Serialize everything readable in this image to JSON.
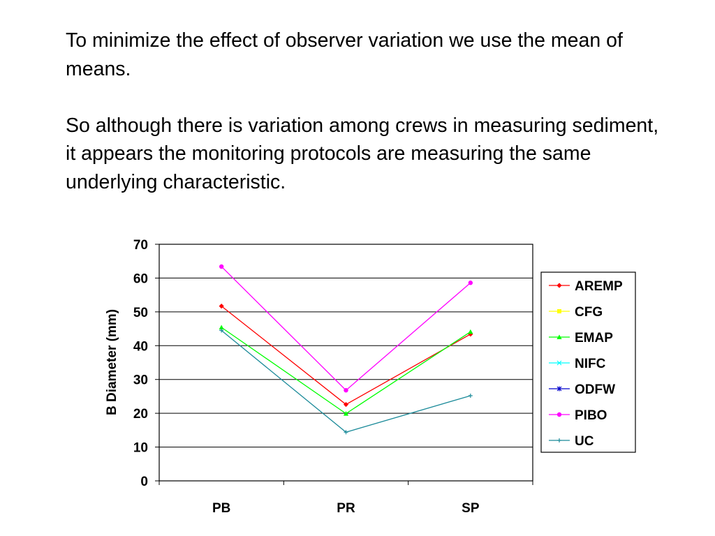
{
  "slide": {
    "paragraph_1": "To minimize the effect of observer variation we use the mean of means.",
    "paragraph_2": "So although there is variation among crews in measuring sediment, it appears the monitoring protocols are measuring the same underlying characteristic."
  },
  "chart_data": {
    "type": "line",
    "title": "",
    "xlabel": "",
    "ylabel": "B Diameter (mm)",
    "categories": [
      "PB",
      "PR",
      "SP"
    ],
    "ylim": [
      0,
      70
    ],
    "yticks": [
      0,
      10,
      20,
      30,
      40,
      50,
      60,
      70
    ],
    "grid": "horizontal major gridlines",
    "legend_position": "right",
    "series": [
      {
        "name": "AREMP",
        "values": [
          51.7,
          22.6,
          43.4
        ],
        "color": "#ff0000",
        "marker": "diamond"
      },
      {
        "name": "CFG",
        "values": [
          null,
          null,
          null
        ],
        "color": "#ffff00",
        "marker": "square"
      },
      {
        "name": "EMAP",
        "values": [
          45.4,
          19.9,
          44.1
        ],
        "color": "#00ff00",
        "marker": "triangle"
      },
      {
        "name": "NIFC",
        "values": [
          null,
          null,
          null
        ],
        "color": "#00ffff",
        "marker": "x"
      },
      {
        "name": "ODFW",
        "values": [
          null,
          null,
          null
        ],
        "color": "#0000cc",
        "marker": "star"
      },
      {
        "name": "PIBO",
        "values": [
          63.4,
          26.8,
          58.6
        ],
        "color": "#ff00ff",
        "marker": "circle"
      },
      {
        "name": "UC",
        "values": [
          44.5,
          14.4,
          25.2
        ],
        "color": "#1a8a99",
        "marker": "plus"
      }
    ]
  }
}
